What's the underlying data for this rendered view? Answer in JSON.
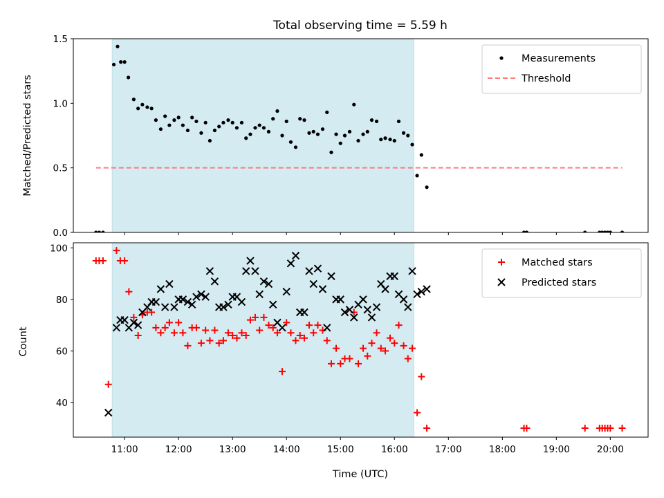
{
  "chart_data": [
    {
      "type": "scatter",
      "title": "Total observing time = 5.59 h",
      "ylabel": "Matched/Predicted stars",
      "xlabel": "",
      "x_units": "hours UTC",
      "xlim": [
        10.05,
        20.7
      ],
      "ylim": [
        0,
        1.5
      ],
      "yticks": [
        0.0,
        0.5,
        1.0,
        1.5
      ],
      "ytick_labels": [
        "0.0",
        "0.5",
        "1.0",
        "1.5"
      ],
      "shaded_interval": {
        "x": [
          10.77,
          16.36
        ],
        "color": "#d4ebf1"
      },
      "legend": {
        "position": "top-right",
        "entries": [
          "Measurements",
          "Threshold"
        ]
      },
      "series": [
        {
          "name": "Measurements",
          "style": "dot",
          "color": "#000000",
          "x": [
            10.47,
            10.53,
            10.6,
            10.8,
            10.87,
            10.93,
            11.0,
            11.07,
            11.17,
            11.25,
            11.33,
            11.42,
            11.5,
            11.58,
            11.67,
            11.75,
            11.83,
            11.92,
            12.0,
            12.08,
            12.17,
            12.25,
            12.33,
            12.42,
            12.5,
            12.58,
            12.67,
            12.75,
            12.83,
            12.92,
            13.0,
            13.08,
            13.17,
            13.25,
            13.33,
            13.42,
            13.5,
            13.58,
            13.67,
            13.75,
            13.83,
            13.92,
            14.0,
            14.08,
            14.17,
            14.25,
            14.33,
            14.42,
            14.5,
            14.58,
            14.67,
            14.75,
            14.83,
            14.92,
            15.0,
            15.08,
            15.17,
            15.25,
            15.33,
            15.42,
            15.5,
            15.58,
            15.67,
            15.75,
            15.83,
            15.92,
            16.0,
            16.08,
            16.17,
            16.25,
            16.33,
            16.42,
            16.5,
            16.6,
            18.4,
            18.45,
            19.53,
            19.8,
            19.85,
            19.9,
            19.95,
            20.0,
            20.22
          ],
          "y": [
            0,
            0,
            0,
            1.3,
            1.44,
            1.32,
            1.32,
            1.2,
            1.03,
            0.96,
            0.99,
            0.97,
            0.96,
            0.87,
            0.8,
            0.9,
            0.83,
            0.87,
            0.89,
            0.83,
            0.79,
            0.89,
            0.86,
            0.77,
            0.85,
            0.71,
            0.79,
            0.82,
            0.85,
            0.87,
            0.85,
            0.81,
            0.85,
            0.73,
            0.76,
            0.81,
            0.83,
            0.81,
            0.78,
            0.88,
            0.94,
            0.75,
            0.86,
            0.7,
            0.66,
            0.88,
            0.87,
            0.77,
            0.78,
            0.76,
            0.8,
            0.93,
            0.62,
            0.76,
            0.69,
            0.75,
            0.78,
            0.99,
            0.71,
            0.76,
            0.78,
            0.87,
            0.86,
            0.72,
            0.73,
            0.72,
            0.71,
            0.86,
            0.77,
            0.75,
            0.68,
            0.44,
            0.6,
            0.35,
            0,
            0,
            0,
            0,
            0,
            0,
            0,
            0,
            0
          ]
        },
        {
          "name": "Threshold",
          "style": "dashed-line",
          "color": "#ff7a7a",
          "x": [
            10.47,
            20.22
          ],
          "y": [
            0.5,
            0.5
          ]
        }
      ]
    },
    {
      "type": "scatter",
      "title": "",
      "ylabel": "Count",
      "xlabel": "Time (UTC)",
      "x_units": "hours UTC",
      "xlim": [
        10.05,
        20.7
      ],
      "ylim": [
        26.5,
        102
      ],
      "yticks": [
        40,
        60,
        80,
        100
      ],
      "ytick_labels": [
        "40",
        "60",
        "80",
        "100"
      ],
      "xticks": [
        11,
        12,
        13,
        14,
        15,
        16,
        17,
        18,
        19,
        20
      ],
      "xtick_labels": [
        "11:00",
        "12:00",
        "13:00",
        "14:00",
        "15:00",
        "16:00",
        "17:00",
        "18:00",
        "19:00",
        "20:00"
      ],
      "shaded_interval": {
        "x": [
          10.77,
          16.36
        ],
        "color": "#d4ebf1"
      },
      "legend": {
        "position": "top-right",
        "entries": [
          "Matched stars",
          "Predicted stars"
        ]
      },
      "series": [
        {
          "name": "Matched stars",
          "style": "plus",
          "color": "#ff0000",
          "x": [
            10.47,
            10.53,
            10.6,
            10.7,
            10.85,
            10.92,
            11.0,
            11.08,
            11.17,
            11.25,
            11.33,
            11.42,
            11.5,
            11.58,
            11.67,
            11.75,
            11.83,
            11.92,
            12.0,
            12.08,
            12.17,
            12.25,
            12.33,
            12.42,
            12.5,
            12.58,
            12.67,
            12.75,
            12.83,
            12.92,
            13.0,
            13.08,
            13.17,
            13.25,
            13.33,
            13.42,
            13.5,
            13.58,
            13.67,
            13.75,
            13.83,
            13.92,
            14.0,
            14.08,
            14.17,
            14.25,
            14.33,
            14.42,
            14.5,
            14.58,
            14.67,
            14.75,
            14.83,
            14.92,
            15.0,
            15.08,
            15.17,
            15.25,
            15.33,
            15.42,
            15.5,
            15.58,
            15.67,
            15.75,
            15.83,
            15.92,
            16.0,
            16.08,
            16.17,
            16.25,
            16.33,
            16.42,
            16.5,
            16.6,
            18.4,
            18.45,
            19.53,
            19.8,
            19.85,
            19.9,
            19.95,
            20.0,
            20.22
          ],
          "y": [
            95,
            95,
            95,
            47,
            99,
            95,
            95,
            83,
            73,
            66,
            74,
            75,
            75,
            69,
            67,
            69,
            71,
            67,
            71,
            67,
            62,
            69,
            69,
            63,
            68,
            64,
            68,
            63,
            64,
            67,
            66,
            65,
            67,
            66,
            72,
            73,
            68,
            73,
            70,
            69,
            67,
            52,
            71,
            67,
            64,
            66,
            65,
            70,
            67,
            70,
            68,
            64,
            55,
            61,
            55,
            57,
            57,
            75,
            55,
            61,
            58,
            63,
            67,
            61,
            60,
            65,
            63,
            70,
            62,
            57,
            61,
            36,
            50,
            30,
            30,
            30,
            30,
            30,
            30,
            30,
            30,
            30,
            30
          ]
        },
        {
          "name": "Predicted stars",
          "style": "x",
          "color": "#000000",
          "x": [
            10.7,
            10.85,
            10.92,
            11.0,
            11.08,
            11.17,
            11.25,
            11.33,
            11.42,
            11.5,
            11.58,
            11.67,
            11.75,
            11.83,
            11.92,
            12.0,
            12.08,
            12.17,
            12.25,
            12.33,
            12.42,
            12.5,
            12.58,
            12.67,
            12.75,
            12.83,
            12.92,
            13.0,
            13.08,
            13.17,
            13.25,
            13.33,
            13.42,
            13.5,
            13.58,
            13.67,
            13.75,
            13.83,
            13.92,
            14.0,
            14.08,
            14.17,
            14.25,
            14.33,
            14.42,
            14.5,
            14.58,
            14.67,
            14.75,
            14.83,
            14.92,
            15.0,
            15.08,
            15.17,
            15.25,
            15.33,
            15.42,
            15.5,
            15.58,
            15.67,
            15.75,
            15.83,
            15.92,
            16.0,
            16.08,
            16.17,
            16.25,
            16.33,
            16.42,
            16.5,
            16.6
          ],
          "y": [
            36,
            69,
            72,
            72,
            69,
            71,
            70,
            75,
            77,
            79,
            79,
            84,
            77,
            86,
            77,
            80,
            80,
            79,
            78,
            81,
            82,
            81,
            91,
            87,
            77,
            77,
            78,
            81,
            81,
            79,
            91,
            95,
            91,
            82,
            87,
            86,
            78,
            71,
            69,
            83,
            94,
            97,
            75,
            75,
            91,
            86,
            92,
            84,
            69,
            89,
            80,
            80,
            75,
            76,
            73,
            78,
            80,
            76,
            73,
            77,
            86,
            84,
            89,
            89,
            82,
            80,
            77,
            91,
            82,
            83,
            84
          ]
        }
      ]
    }
  ]
}
